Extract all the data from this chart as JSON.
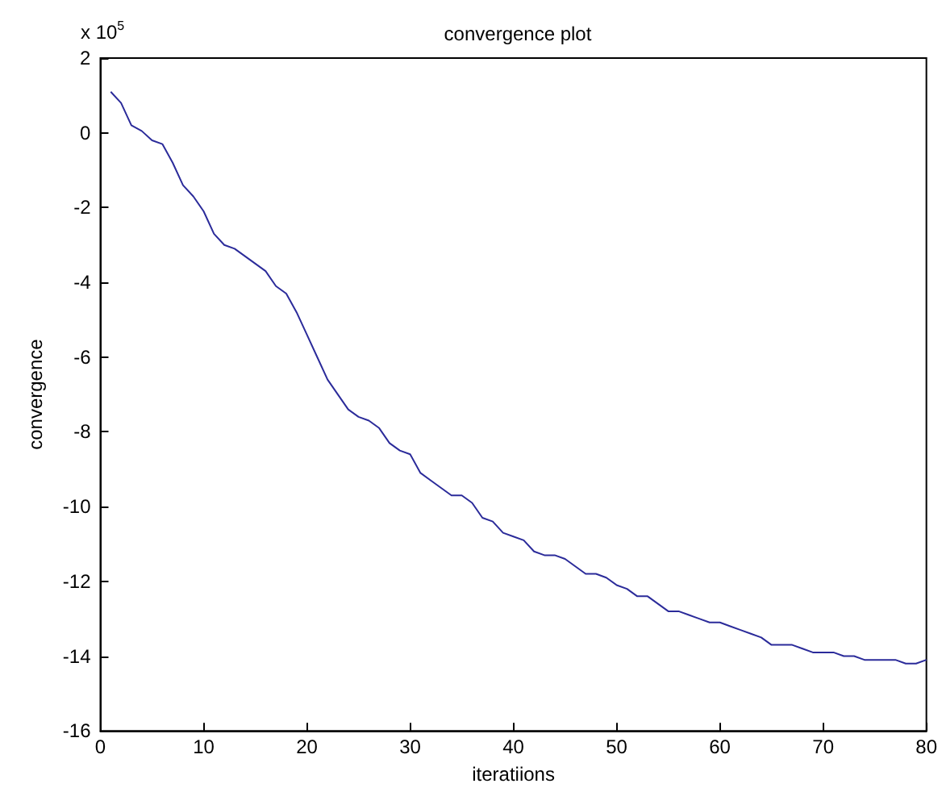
{
  "chart_data": {
    "type": "line",
    "title": "convergence plot",
    "xlabel": "iteratiions",
    "ylabel": "convergence",
    "annotations": [
      "x 10$^{5}$"
    ],
    "x": [
      1,
      2,
      3,
      4,
      5,
      6,
      7,
      8,
      9,
      10,
      11,
      12,
      13,
      14,
      15,
      16,
      17,
      18,
      19,
      20,
      21,
      22,
      23,
      24,
      25,
      26,
      27,
      28,
      29,
      30,
      31,
      32,
      33,
      34,
      35,
      36,
      37,
      38,
      39,
      40,
      41,
      42,
      43,
      44,
      45,
      46,
      47,
      48,
      49,
      50,
      51,
      52,
      53,
      54,
      55,
      56,
      57,
      58,
      59,
      60,
      61,
      62,
      63,
      64,
      65,
      66,
      67,
      68,
      69,
      70,
      71,
      72,
      73,
      74,
      75,
      76,
      77,
      78,
      79,
      80
    ],
    "series": [
      {
        "color": "#2b2b9a",
        "values": [
          1.1,
          0.8,
          0.2,
          0.05,
          -0.2,
          -0.3,
          -0.8,
          -1.4,
          -1.7,
          -2.1,
          -2.7,
          -3.0,
          -3.1,
          -3.3,
          -3.5,
          -3.7,
          -4.1,
          -4.3,
          -4.8,
          -5.4,
          -6.0,
          -6.6,
          -7.0,
          -7.4,
          -7.6,
          -7.7,
          -7.9,
          -8.3,
          -8.5,
          -8.6,
          -9.1,
          -9.3,
          -9.5,
          -9.7,
          -9.7,
          -9.9,
          -10.3,
          -10.4,
          -10.7,
          -10.8,
          -10.9,
          -11.2,
          -11.3,
          -11.3,
          -11.4,
          -11.6,
          -11.8,
          -11.8,
          -11.9,
          -12.1,
          -12.2,
          -12.4,
          -12.4,
          -12.6,
          -12.8,
          -12.8,
          -12.9,
          -13.0,
          -13.1,
          -13.1,
          -13.2,
          -13.3,
          -13.4,
          -13.5,
          -13.7,
          -13.7,
          -13.7,
          -13.8,
          -13.9,
          -13.9,
          -13.9,
          -14.0,
          -14.0,
          -14.1,
          -14.1,
          -14.1,
          -14.1,
          -14.2,
          -14.2,
          -14.1
        ]
      }
    ],
    "xlim": [
      0,
      80
    ],
    "xticks": [
      0,
      10,
      20,
      30,
      40,
      50,
      60,
      70,
      80
    ],
    "ylim": [
      -16,
      2
    ],
    "yticks": [
      -16,
      -14,
      -12,
      -10,
      -8,
      -6,
      -4,
      -2,
      0,
      2
    ],
    "grid": false,
    "marker": "none",
    "line_style": "solid"
  }
}
